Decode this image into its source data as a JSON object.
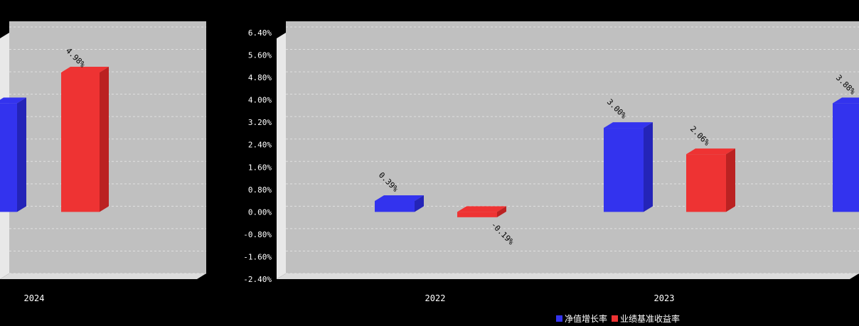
{
  "chart_data": {
    "type": "bar",
    "left_panel": {
      "categories": [
        "2024"
      ],
      "series": [
        {
          "name": "净值增长率",
          "values": [
            3.88
          ]
        },
        {
          "name": "业绩基准收益率",
          "values": [
            4.98
          ]
        }
      ],
      "labels": [
        "",
        "4.98%"
      ]
    },
    "right_panel": {
      "categories": [
        "2022",
        "2023",
        "2024"
      ],
      "series": [
        {
          "name": "净值增长率",
          "values": [
            0.39,
            3.0,
            3.88
          ]
        },
        {
          "name": "业绩基准收益率",
          "values": [
            -0.19,
            2.06,
            4.98
          ]
        }
      ],
      "labels": [
        [
          "0.39%",
          "-0.19%"
        ],
        [
          "3.00%",
          "2.06%"
        ],
        [
          "3.88%",
          ""
        ]
      ],
      "x_tick_labels": [
        "2022",
        "2023"
      ]
    },
    "y_ticks": [
      "6.40%",
      "5.60%",
      "4.80%",
      "4.00%",
      "3.20%",
      "2.40%",
      "1.60%",
      "0.80%",
      "0.00%",
      "-0.80%",
      "-1.60%",
      "-2.40%"
    ],
    "ylim": [
      -2.4,
      6.4
    ],
    "grid": true,
    "legend_position": "bottom",
    "colors": {
      "series1": "#3333ee",
      "series2": "#ee3333",
      "plot_bg": "#c0c0c0",
      "background": "#000000"
    }
  },
  "legend": {
    "item1": "净值增长率",
    "item2": "业绩基准收益率"
  }
}
